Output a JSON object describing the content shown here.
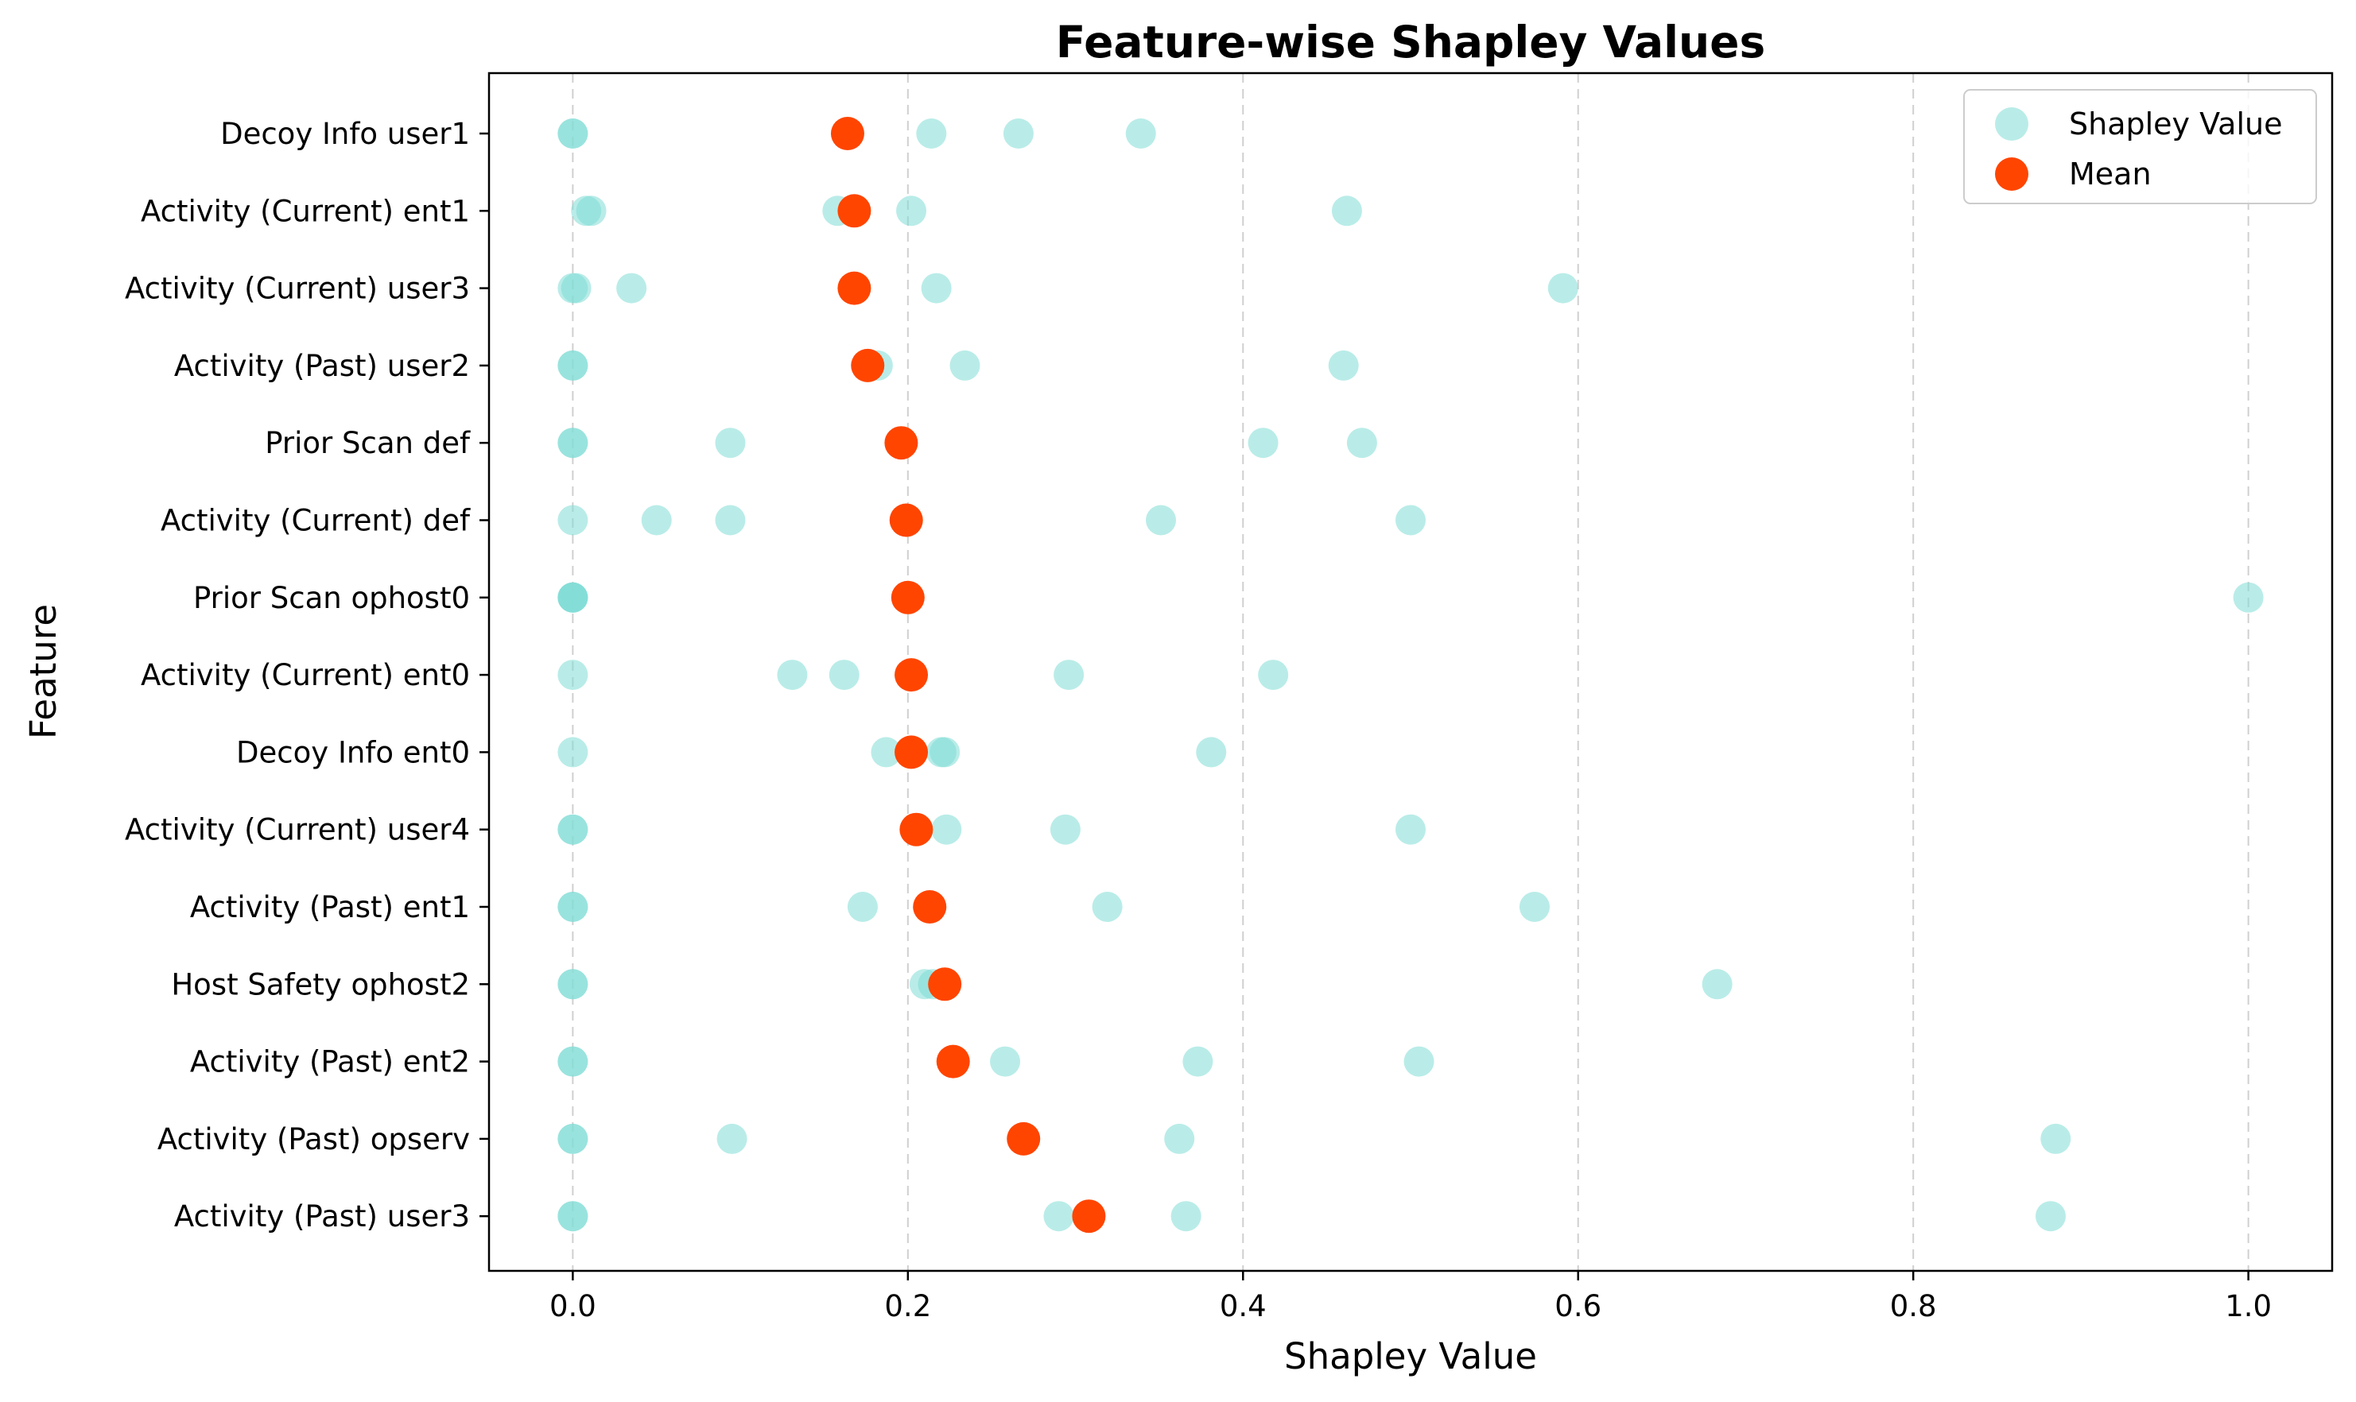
{
  "chart_data": {
    "type": "scatter",
    "title": "Feature-wise Shapley Values",
    "xlabel": "Shapley Value",
    "ylabel": "Feature",
    "xlim": [
      -0.05,
      1.05
    ],
    "xticks": [
      0.0,
      0.2,
      0.4,
      0.6,
      0.8,
      1.0
    ],
    "xtick_labels": [
      "0.0",
      "0.2",
      "0.4",
      "0.6",
      "0.8",
      "1.0"
    ],
    "grid": "x-dashed",
    "legend_position": "top-right",
    "categories": [
      "Decoy Info user1",
      "Activity (Current) ent1",
      "Activity (Current) user3",
      "Activity (Past) user2",
      "Prior Scan def",
      "Activity (Current) def",
      "Prior Scan ophost0",
      "Activity (Current) ent0",
      "Decoy Info ent0",
      "Activity (Current) user4",
      "Activity (Past) ent1",
      "Host Safety ophost2",
      "Activity (Past) ent2",
      "Activity (Past) opserv",
      "Activity (Past) user3"
    ],
    "series": [
      {
        "name": "Shapley Value",
        "color": "#7fdcd6",
        "values": [
          [
            0.0,
            0.0,
            0.214,
            0.266,
            0.339
          ],
          [
            0.008,
            0.011,
            0.158,
            0.202,
            0.462
          ],
          [
            0.0,
            0.002,
            0.035,
            0.217,
            0.591
          ],
          [
            0.0,
            0.0,
            0.182,
            0.234,
            0.46
          ],
          [
            0.0,
            0.0,
            0.094,
            0.412,
            0.471
          ],
          [
            0.0,
            0.05,
            0.094,
            0.351,
            0.5
          ],
          [
            0.0,
            0.0,
            0.0,
            0.0,
            1.0
          ],
          [
            0.0,
            0.131,
            0.162,
            0.296,
            0.418
          ],
          [
            0.0,
            0.187,
            0.22,
            0.222,
            0.381
          ],
          [
            0.0,
            0.0,
            0.223,
            0.294,
            0.5
          ],
          [
            0.0,
            0.0,
            0.173,
            0.319,
            0.574
          ],
          [
            0.0,
            0.0,
            0.21,
            0.215,
            0.683
          ],
          [
            0.0,
            0.0,
            0.258,
            0.373,
            0.505
          ],
          [
            0.0,
            0.0,
            0.095,
            0.362,
            0.885
          ],
          [
            0.0,
            0.0,
            0.29,
            0.366,
            0.882
          ]
        ]
      },
      {
        "name": "Mean",
        "color": "#ff4500",
        "values": [
          0.164,
          0.168,
          0.168,
          0.176,
          0.196,
          0.199,
          0.2,
          0.202,
          0.202,
          0.205,
          0.213,
          0.222,
          0.227,
          0.269,
          0.308
        ]
      }
    ]
  }
}
